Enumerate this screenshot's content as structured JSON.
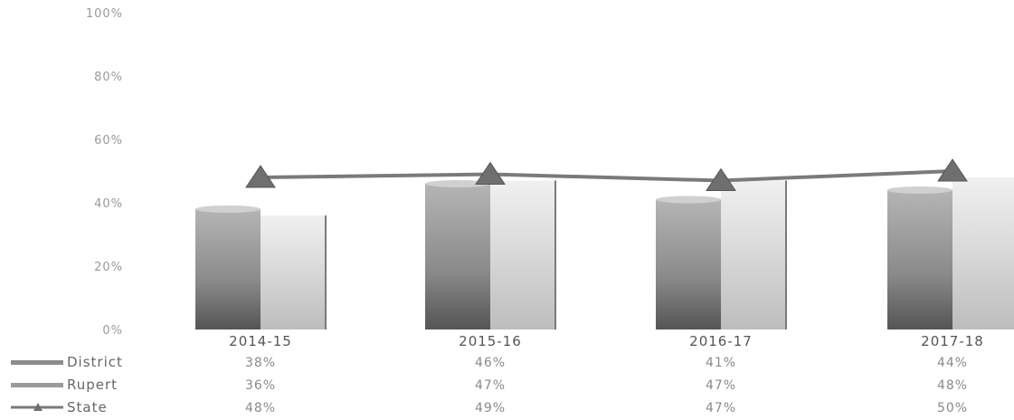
{
  "chart_data": {
    "type": "bar",
    "title": "",
    "xlabel": "",
    "ylabel": "",
    "ylim": [
      0,
      100
    ],
    "y_ticks": [
      "0%",
      "20%",
      "40%",
      "60%",
      "80%",
      "100%"
    ],
    "categories": [
      "2014-15",
      "2015-16",
      "2016-17",
      "2017-18"
    ],
    "series": [
      {
        "name": "District",
        "kind": "bar",
        "values": [
          38,
          46,
          41,
          44
        ],
        "labels": [
          "38%",
          "46%",
          "41%",
          "44%"
        ]
      },
      {
        "name": "Rupert",
        "kind": "bar",
        "values": [
          36,
          47,
          47,
          48
        ],
        "labels": [
          "36%",
          "47%",
          "47%",
          "48%"
        ]
      },
      {
        "name": "State",
        "kind": "line",
        "marker": "triangle",
        "values": [
          48,
          49,
          47,
          50
        ],
        "labels": [
          "48%",
          "49%",
          "47%",
          "50%"
        ]
      }
    ],
    "legend": "data-table-below",
    "grid": false,
    "colors": {
      "district": "#8c8c8c",
      "rupert": "#d2d2d2",
      "state_line": "#7a7a7a",
      "state_marker": "#6f6f6f"
    }
  }
}
